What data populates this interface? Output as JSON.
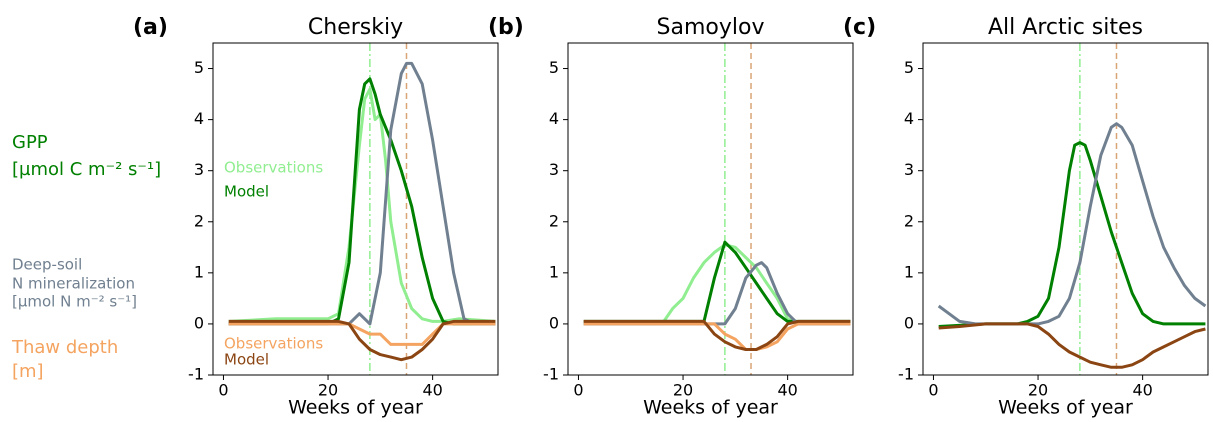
{
  "row_labels": [
    {
      "lines": [
        "GPP",
        "[µmol C m⁻² s⁻¹]"
      ],
      "color": "#008000"
    },
    {
      "lines": [
        "Deep-soil",
        "N mineralization",
        "[µmol N m⁻² s⁻¹]"
      ],
      "color": "#708090"
    },
    {
      "lines": [
        "Thaw depth",
        " [m]"
      ],
      "color": "#f4a460"
    }
  ],
  "chart_data": [
    {
      "type": "line",
      "panel_label": "(a)",
      "title": "Cherskiy",
      "x_label": "Weeks of year",
      "xlim": [
        -2,
        52.5
      ],
      "ylim": [
        -1,
        5.5
      ],
      "xticks": [
        0,
        20,
        40
      ],
      "yticks": [
        -1,
        0,
        1,
        2,
        3,
        4,
        5
      ],
      "annotations": [
        {
          "text": "Observations",
          "color": "#90ee90"
        },
        {
          "text": "Model",
          "color": "#008000"
        },
        {
          "text": "Observations",
          "color": "#f4a460"
        },
        {
          "text": "Model",
          "color": "#8b4513"
        }
      ],
      "vlines": [
        {
          "x": 28,
          "color": "#90ee90",
          "style": "dashdot"
        },
        {
          "x": 35,
          "color": "#d9a577",
          "style": "dashed"
        }
      ],
      "series": [
        {
          "color": "#90ee90",
          "x": [
            1,
            10,
            18,
            20,
            22,
            24,
            26,
            27,
            28,
            29,
            30,
            31,
            32,
            34,
            36,
            38,
            40,
            42,
            45,
            52
          ],
          "values": [
            0.05,
            0.1,
            0.1,
            0.1,
            0.2,
            1.5,
            3.5,
            4.4,
            4.6,
            4.0,
            4.1,
            3.2,
            2.0,
            0.8,
            0.3,
            0.1,
            0.05,
            0.05,
            0.1,
            0.05
          ]
        },
        {
          "color": "#008000",
          "x": [
            1,
            20,
            22,
            24,
            26,
            27,
            28,
            29,
            30,
            32,
            34,
            36,
            38,
            40,
            42,
            44,
            46,
            52
          ],
          "values": [
            0,
            0,
            0.1,
            1.2,
            4.2,
            4.7,
            4.8,
            4.5,
            4.1,
            3.6,
            3.0,
            2.3,
            1.3,
            0.5,
            0.05,
            0,
            0,
            0
          ]
        },
        {
          "color": "#708090",
          "x": [
            1,
            24,
            26,
            28,
            30,
            32,
            34,
            35,
            36,
            38,
            40,
            42,
            44,
            46,
            48,
            52
          ],
          "values": [
            0,
            0,
            0.2,
            0,
            1.0,
            3.8,
            4.9,
            5.1,
            5.1,
            4.7,
            3.6,
            2.3,
            1.0,
            0.1,
            0,
            0
          ]
        },
        {
          "color": "#f4a460",
          "x": [
            1,
            24,
            26,
            28,
            30,
            32,
            34,
            36,
            38,
            40,
            41,
            42,
            44,
            52
          ],
          "values": [
            0,
            0,
            -0.1,
            -0.2,
            -0.2,
            -0.4,
            -0.4,
            -0.4,
            -0.4,
            -0.2,
            -0.1,
            0,
            0,
            0
          ]
        },
        {
          "color": "#8b4513",
          "x": [
            1,
            22,
            24,
            26,
            28,
            30,
            32,
            34,
            36,
            38,
            40,
            42,
            44,
            52
          ],
          "values": [
            0.05,
            0.05,
            0,
            -0.3,
            -0.5,
            -0.6,
            -0.65,
            -0.7,
            -0.65,
            -0.5,
            -0.3,
            0,
            0.05,
            0.05
          ]
        }
      ]
    },
    {
      "type": "line",
      "panel_label": "(b)",
      "title": "Samoylov",
      "x_label": "Weeks of year",
      "xlim": [
        -2,
        52.5
      ],
      "ylim": [
        -1,
        5.5
      ],
      "xticks": [
        0,
        20,
        40
      ],
      "yticks": [
        -1,
        0,
        1,
        2,
        3,
        4,
        5
      ],
      "vlines": [
        {
          "x": 28,
          "color": "#90ee90",
          "style": "dashdot"
        },
        {
          "x": 33,
          "color": "#d9a577",
          "style": "dashed"
        }
      ],
      "series": [
        {
          "color": "#90ee90",
          "x": [
            1,
            16,
            18,
            20,
            22,
            24,
            26,
            28,
            30,
            32,
            34,
            36,
            38,
            40,
            42,
            52
          ],
          "values": [
            0,
            0,
            0.3,
            0.5,
            0.9,
            1.2,
            1.4,
            1.55,
            1.5,
            1.3,
            1.1,
            0.8,
            0.5,
            0.1,
            0,
            0
          ]
        },
        {
          "color": "#008000",
          "x": [
            1,
            24,
            26,
            28,
            30,
            32,
            34,
            36,
            38,
            40,
            42,
            52
          ],
          "values": [
            0.05,
            0.05,
            0.9,
            1.6,
            1.4,
            1.1,
            0.8,
            0.5,
            0.2,
            0.05,
            0.05,
            0.05
          ]
        },
        {
          "color": "#708090",
          "x": [
            1,
            28,
            30,
            32,
            34,
            35,
            36,
            38,
            40,
            42,
            52
          ],
          "values": [
            0,
            0,
            0.3,
            0.9,
            1.15,
            1.2,
            1.1,
            0.6,
            0.2,
            0,
            0
          ]
        },
        {
          "color": "#f4a460",
          "x": [
            1,
            26,
            28,
            30,
            32,
            34,
            36,
            38,
            40,
            42,
            52
          ],
          "values": [
            0,
            0,
            -0.2,
            -0.3,
            -0.5,
            -0.5,
            -0.45,
            -0.35,
            -0.1,
            0,
            0
          ]
        },
        {
          "color": "#8b4513",
          "x": [
            1,
            24,
            26,
            28,
            30,
            32,
            34,
            36,
            38,
            40,
            42,
            52
          ],
          "values": [
            0.05,
            0.05,
            -0.2,
            -0.35,
            -0.45,
            -0.5,
            -0.5,
            -0.4,
            -0.25,
            0,
            0.05,
            0.05
          ]
        }
      ]
    },
    {
      "type": "line",
      "panel_label": "(c)",
      "title": "All Arctic sites",
      "x_label": "Weeks of year",
      "xlim": [
        -2,
        52.5
      ],
      "ylim": [
        -1,
        5.5
      ],
      "xticks": [
        0,
        20,
        40
      ],
      "yticks": [
        -1,
        0,
        1,
        2,
        3,
        4,
        5
      ],
      "vlines": [
        {
          "x": 28,
          "color": "#90ee90",
          "style": "dashdot"
        },
        {
          "x": 35,
          "color": "#d9a577",
          "style": "dashed"
        }
      ],
      "series": [
        {
          "color": "#008000",
          "x": [
            1,
            10,
            16,
            18,
            20,
            22,
            24,
            26,
            27,
            28,
            29,
            30,
            32,
            34,
            36,
            38,
            40,
            42,
            44,
            46,
            52
          ],
          "values": [
            -0.05,
            0,
            0,
            0.05,
            0.15,
            0.5,
            1.5,
            3.0,
            3.5,
            3.55,
            3.5,
            3.2,
            2.5,
            1.8,
            1.2,
            0.6,
            0.2,
            0.05,
            0,
            0,
            0
          ]
        },
        {
          "color": "#708090",
          "x": [
            1,
            3,
            5,
            8,
            10,
            20,
            22,
            24,
            26,
            28,
            30,
            32,
            34,
            35,
            36,
            38,
            40,
            42,
            44,
            46,
            48,
            50,
            52
          ],
          "values": [
            0.35,
            0.2,
            0.05,
            0,
            0,
            0,
            0.05,
            0.15,
            0.5,
            1.2,
            2.3,
            3.3,
            3.85,
            3.92,
            3.85,
            3.5,
            2.8,
            2.1,
            1.5,
            1.1,
            0.75,
            0.5,
            0.35
          ]
        },
        {
          "color": "#8b4513",
          "x": [
            1,
            5,
            10,
            18,
            20,
            22,
            24,
            26,
            28,
            30,
            32,
            34,
            36,
            38,
            40,
            42,
            44,
            46,
            48,
            50,
            52
          ],
          "values": [
            -0.08,
            -0.05,
            0,
            0,
            -0.05,
            -0.2,
            -0.4,
            -0.55,
            -0.65,
            -0.75,
            -0.8,
            -0.85,
            -0.85,
            -0.8,
            -0.7,
            -0.55,
            -0.45,
            -0.35,
            -0.25,
            -0.15,
            -0.1
          ]
        }
      ]
    }
  ]
}
